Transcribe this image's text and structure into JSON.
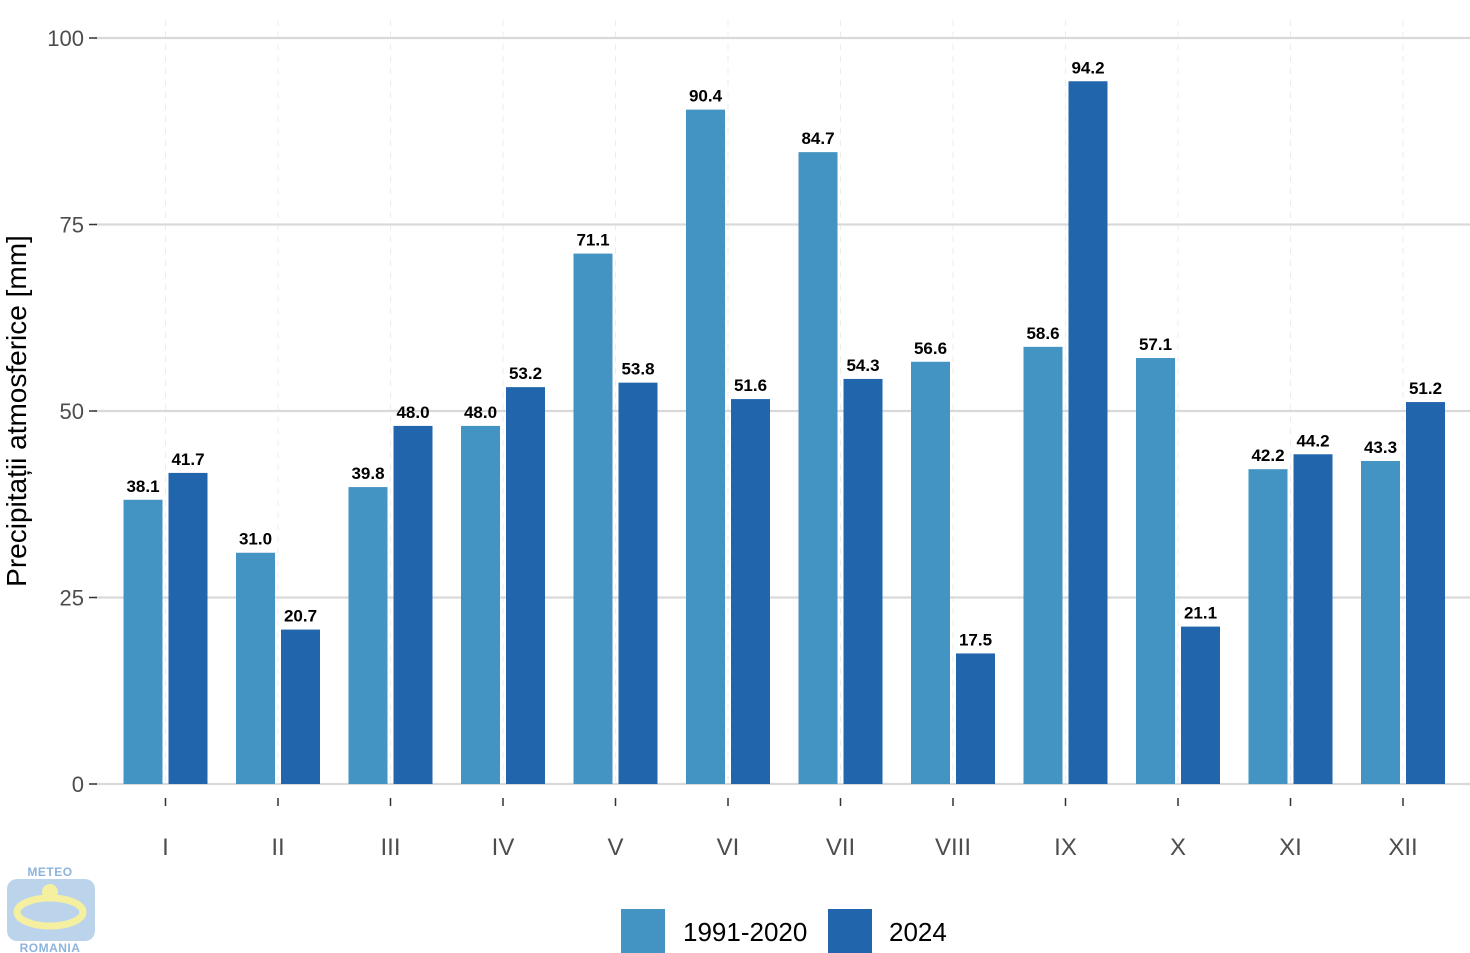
{
  "chart_data": {
    "type": "bar",
    "title": "",
    "xlabel": "",
    "ylabel": "Precipitații atmosferice [mm]",
    "ylim": [
      0,
      100
    ],
    "yticks": [
      0,
      25,
      50,
      75,
      100
    ],
    "categories": [
      "I",
      "II",
      "III",
      "IV",
      "V",
      "VI",
      "VII",
      "VIII",
      "IX",
      "X",
      "XI",
      "XII"
    ],
    "series": [
      {
        "name": "1991-2020",
        "color": "#4393c3",
        "values": [
          38.1,
          31.0,
          39.8,
          48.0,
          71.1,
          90.4,
          84.7,
          56.6,
          58.6,
          57.1,
          42.2,
          43.3
        ],
        "labels": [
          "38.1",
          "31.0",
          "39.8",
          "48.0",
          "71.1",
          "90.4",
          "84.7",
          "56.6",
          "58.6",
          "57.1",
          "42.2",
          "43.3"
        ]
      },
      {
        "name": "2024",
        "color": "#2166ac",
        "values": [
          41.7,
          20.7,
          48.0,
          53.2,
          53.8,
          51.6,
          54.3,
          17.5,
          94.2,
          21.1,
          44.2,
          51.2
        ],
        "labels": [
          "41.7",
          "20.7",
          "48.0",
          "53.2",
          "53.8",
          "51.6",
          "54.3",
          "17.5",
          "94.2",
          "21.1",
          "44.2",
          "51.2"
        ]
      }
    ],
    "grid": true,
    "legend_position": "bottom"
  },
  "logo": {
    "top_text": "METEO",
    "bottom_text": "ROMANIA",
    "icon": "meteo-romania-logo"
  }
}
